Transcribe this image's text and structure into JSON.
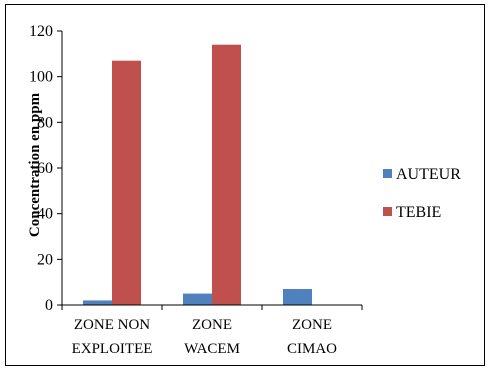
{
  "chart_data": {
    "type": "bar",
    "title": "",
    "xlabel": "",
    "ylabel": "Concentration en ppm",
    "ylim": [
      0,
      120
    ],
    "yticks": [
      0,
      20,
      40,
      60,
      80,
      100,
      120
    ],
    "grid": false,
    "legend_position": "right",
    "categories": [
      [
        "ZONE NON",
        "EXPLOITEE"
      ],
      [
        "ZONE",
        "WACEM"
      ],
      [
        "ZONE",
        "CIMAO"
      ]
    ],
    "series": [
      {
        "name": "AUTEUR",
        "color": "#4f81bd",
        "values": [
          2,
          5,
          7
        ]
      },
      {
        "name": "TEBIE",
        "color": "#c0504d",
        "values": [
          107,
          114,
          0
        ]
      }
    ]
  }
}
